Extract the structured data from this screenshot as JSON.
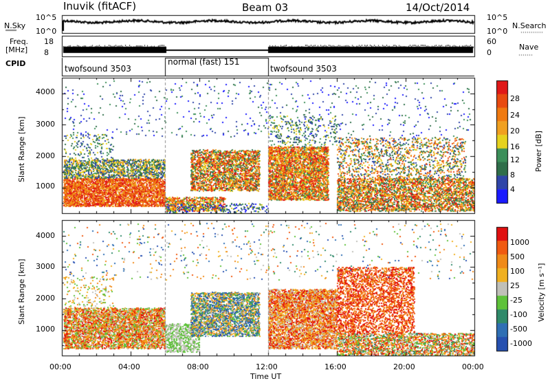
{
  "header": {
    "station": "Inuvik (fitACF)",
    "beam": "Beam 03",
    "date": "14/Oct/2014"
  },
  "top_panels": {
    "nsky": {
      "label": "N.Sky",
      "ticks_right": [
        "10^5",
        "10^0"
      ],
      "ticks_left": [
        "10^5",
        "10^0"
      ],
      "right_label": "N.Search"
    },
    "freq": {
      "label_line1": "Freq.",
      "label_line2": "[MHz]",
      "ticks_left": [
        "18",
        "8"
      ],
      "ticks_right": [
        "60",
        "0"
      ],
      "right_label": "Nave"
    },
    "cpid": {
      "label": "CPID",
      "segments": [
        {
          "name": "twofsound 3503",
          "start_h": 0,
          "end_h": 6
        },
        {
          "name": "normal (fast) 151",
          "start_h": 6,
          "end_h": 12
        },
        {
          "name": "twofsound 3503",
          "start_h": 12,
          "end_h": 24
        }
      ]
    }
  },
  "colors": {
    "power_scale": [
      "#1a1aff",
      "#2f45a8",
      "#2f6e4a",
      "#3c8f5a",
      "#e6d21e",
      "#f0a020",
      "#f07a10",
      "#e84a10",
      "#e01818"
    ],
    "velocity_scale": [
      "#2650b0",
      "#2f6fb4",
      "#2f8a6a",
      "#5ec23a",
      "#c0c0b8",
      "#f0b020",
      "#f08a18",
      "#f05a10",
      "#e01010"
    ]
  },
  "chart_data": [
    {
      "type": "heatmap",
      "title": "Power",
      "ylabel": "Slant Range [km]",
      "ylim": [
        180,
        4500
      ],
      "yticks": [
        "4000",
        "3000",
        "2000",
        "1000"
      ],
      "xlim": [
        0,
        24
      ],
      "colorbar_label": "Power [dB]",
      "colorbar_ticks": [
        "28",
        "24",
        "20",
        "16",
        "12",
        "8",
        "4"
      ],
      "colorbar_range": [
        0,
        32
      ]
    },
    {
      "type": "heatmap",
      "title": "Velocity",
      "ylabel": "Slant Range [km]",
      "ylim": [
        180,
        4500
      ],
      "yticks": [
        "4000",
        "3000",
        "2000",
        "1000"
      ],
      "xlim": [
        0,
        24
      ],
      "colorbar_label": "Velocity [m s⁻¹]",
      "colorbar_ticks": [
        "1000",
        "500",
        "100",
        "25",
        "-25",
        "-100",
        "-500",
        "-1000"
      ]
    }
  ],
  "x_axis": {
    "ticks": [
      "00:00",
      "04:00",
      "08:00",
      "12:00",
      "16:00",
      "20:00",
      "00:00"
    ],
    "label": "Time UT"
  }
}
